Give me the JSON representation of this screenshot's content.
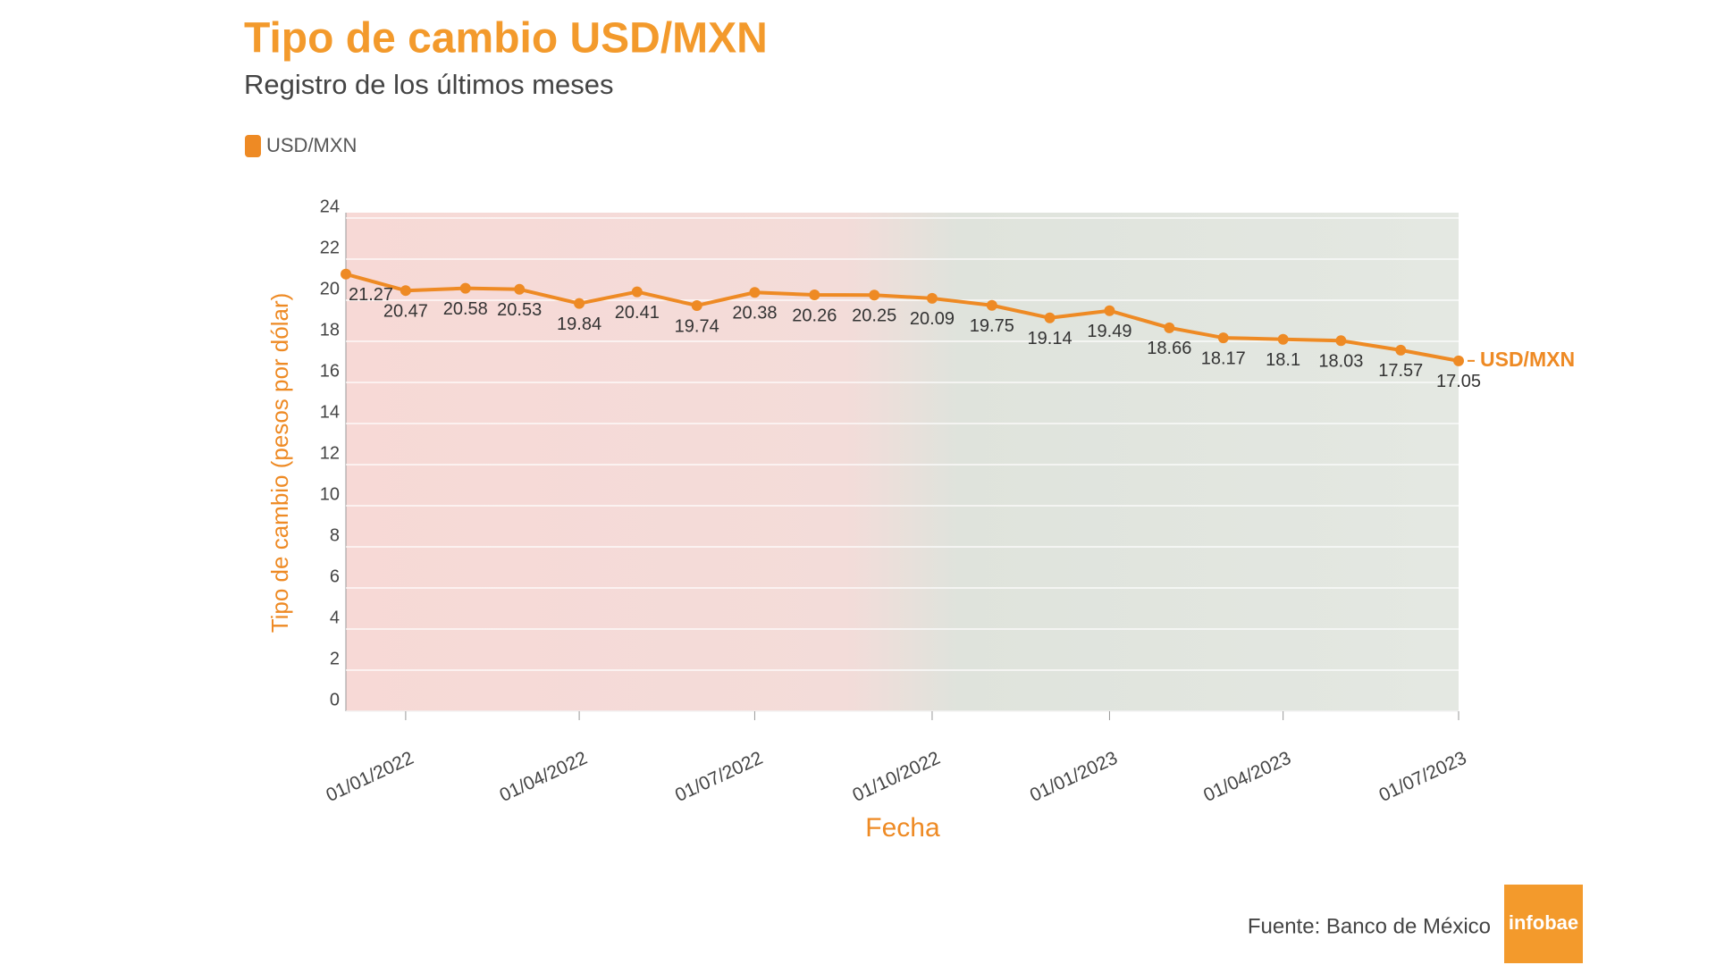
{
  "chart_data": {
    "type": "line",
    "title": "Tipo de cambio USD/MXN",
    "subtitle": "Registro de los últimos meses",
    "x_label": "Fecha",
    "y_label": "Tipo de cambio (pesos por dólar)",
    "source": "Fuente: Banco de México",
    "logo": "infobae",
    "x": [
      "01/12/2021",
      "01/01/2022",
      "01/02/2022",
      "01/03/2022",
      "01/04/2022",
      "01/05/2022",
      "01/06/2022",
      "01/07/2022",
      "01/08/2022",
      "01/09/2022",
      "01/10/2022",
      "01/11/2022",
      "01/12/2022",
      "01/01/2023",
      "01/02/2023",
      "01/03/2023",
      "01/04/2023",
      "01/05/2023",
      "01/06/2023",
      "01/07/2023"
    ],
    "series": [
      {
        "name": "USD/MXN",
        "color": "#ee8a24",
        "values": [
          21.27,
          20.47,
          20.58,
          20.53,
          19.84,
          20.41,
          19.74,
          20.38,
          20.26,
          20.25,
          20.09,
          19.75,
          19.14,
          19.49,
          18.66,
          18.17,
          18.1,
          18.03,
          17.57,
          17.05
        ]
      }
    ],
    "xlim": [
      "01/12/2021",
      "01/07/2023"
    ],
    "xticks": [
      "01/01/2022",
      "01/04/2022",
      "01/07/2022",
      "01/10/2022",
      "01/01/2023",
      "01/04/2023",
      "01/07/2023"
    ],
    "ylim": [
      0,
      24
    ],
    "yticks": [
      0,
      2,
      4,
      6,
      8,
      10,
      12,
      14,
      16,
      18,
      20,
      22,
      24
    ],
    "grid": true,
    "legend": "top-left"
  }
}
